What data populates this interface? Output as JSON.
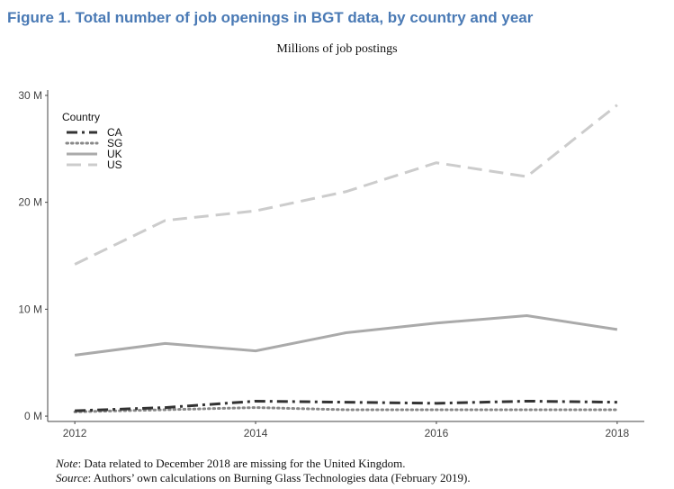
{
  "figure_title": "Figure 1. Total number of job openings in BGT data, by country and year",
  "subtitle": "Millions of job postings",
  "chart_data": {
    "type": "line",
    "title": "Millions of job postings",
    "xlabel": "",
    "ylabel": "",
    "x": [
      2012,
      2013,
      2014,
      2015,
      2016,
      2017,
      2018
    ],
    "xticks": [
      2012,
      2014,
      2016,
      2018
    ],
    "xtick_labels": [
      "2012",
      "2014",
      "2016",
      "2018"
    ],
    "yticks": [
      0,
      10,
      20,
      30
    ],
    "ytick_labels": [
      "0 M",
      "10 M",
      "20 M",
      "30 M"
    ],
    "xlim": [
      2011.7,
      2018.3
    ],
    "ylim": [
      -0.5,
      30.5
    ],
    "grid": false,
    "legend": {
      "title": "Country",
      "position": "top-left"
    },
    "series": [
      {
        "name": "CA",
        "values": [
          0.5,
          0.8,
          1.4,
          1.3,
          1.2,
          1.4,
          1.3
        ],
        "color": "#333333",
        "dash": "dotdash"
      },
      {
        "name": "SG",
        "values": [
          0.4,
          0.6,
          0.8,
          0.6,
          0.6,
          0.6,
          0.6
        ],
        "color": "#888888",
        "dash": "dotted"
      },
      {
        "name": "UK",
        "values": [
          5.7,
          6.8,
          6.1,
          7.8,
          8.7,
          9.4,
          8.1
        ],
        "color": "#aaaaaa",
        "dash": "solid"
      },
      {
        "name": "US",
        "values": [
          14.2,
          18.3,
          19.2,
          21.0,
          23.7,
          22.4,
          29.1
        ],
        "color": "#cccccc",
        "dash": "longdash"
      }
    ]
  },
  "notes": {
    "note_label": "Note",
    "note_text": ": Data related to December 2018 are missing for the United Kingdom.",
    "source_label": "Source",
    "source_text": ": Authors’ own calculations on Burning Glass Technologies data (February 2019)."
  }
}
